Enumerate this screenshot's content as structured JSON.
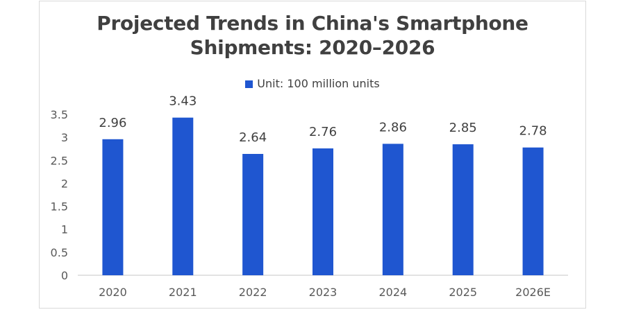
{
  "chart_data": {
    "type": "bar",
    "title": "Projected Trends in China's Smartphone Shipments: 2020–2026",
    "title_lines": [
      "Projected Trends in China's Smartphone",
      "Shipments: 2020–2026"
    ],
    "categories": [
      "2020",
      "2021",
      "2022",
      "2023",
      "2024",
      "2025",
      "2026E"
    ],
    "series": [
      {
        "name": "Unit: 100 million units",
        "values": [
          2.96,
          3.43,
          2.64,
          2.76,
          2.86,
          2.85,
          2.78
        ],
        "color": "#1f56d0"
      }
    ],
    "data_labels": [
      "2.96",
      "3.43",
      "2.64",
      "2.76",
      "2.86",
      "2.85",
      "2.78"
    ],
    "xlabel": "",
    "ylabel": "",
    "ylim": [
      0,
      3.5
    ],
    "yticks": [
      0,
      0.5,
      1,
      1.5,
      2,
      2.5,
      3,
      3.5
    ],
    "ytick_labels": [
      "0",
      "0.5",
      "1",
      "1.5",
      "2",
      "2.5",
      "3",
      "3.5"
    ],
    "grid": false,
    "legend_position": "top-center"
  }
}
